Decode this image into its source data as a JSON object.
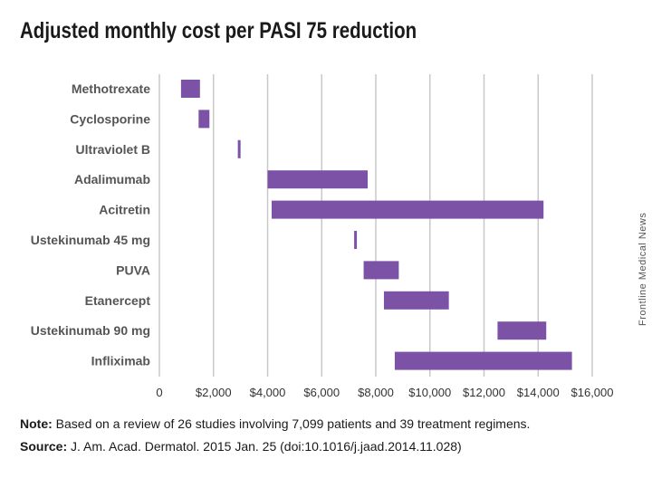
{
  "title": "Adjusted monthly cost per PASI 75 reduction",
  "chart_data": {
    "type": "bar",
    "orientation": "horizontal-range",
    "categories": [
      "Methotrexate",
      "Cyclosporine",
      "Ultraviolet B",
      "Adalimumab",
      "Acitretin",
      "Ustekinumab 45 mg",
      "PUVA",
      "Etanercept",
      "Ustekinumab 90 mg",
      "Infliximab"
    ],
    "ranges": [
      [
        800,
        1500
      ],
      [
        1450,
        1850
      ],
      [
        2900,
        2950
      ],
      [
        4000,
        7700
      ],
      [
        4150,
        14200
      ],
      [
        7200,
        7250
      ],
      [
        7550,
        8850
      ],
      [
        8300,
        10700
      ],
      [
        12500,
        14300
      ],
      [
        8700,
        15250
      ]
    ],
    "x_ticks": [
      "0",
      "$2,000",
      "$4,000",
      "$6,000",
      "$8,000",
      "$10,000",
      "$12,000",
      "$14,000",
      "$16,000"
    ],
    "xlim": [
      0,
      16000
    ],
    "grid": "vertical",
    "bar_color": "#7b52a6",
    "grid_color": "#c8c8c8"
  },
  "footer": {
    "note_label": "Note:",
    "note_text": " Based on a review of 26 studies involving 7,099 patients and 39 treatment regimens.",
    "source_label": "Source:",
    "source_text": " J. Am. Acad. Dermatol. 2015 Jan. 25 (doi:10.1016/j.jaad.2014.11.028)"
  },
  "credit": "Frontline Medical News"
}
